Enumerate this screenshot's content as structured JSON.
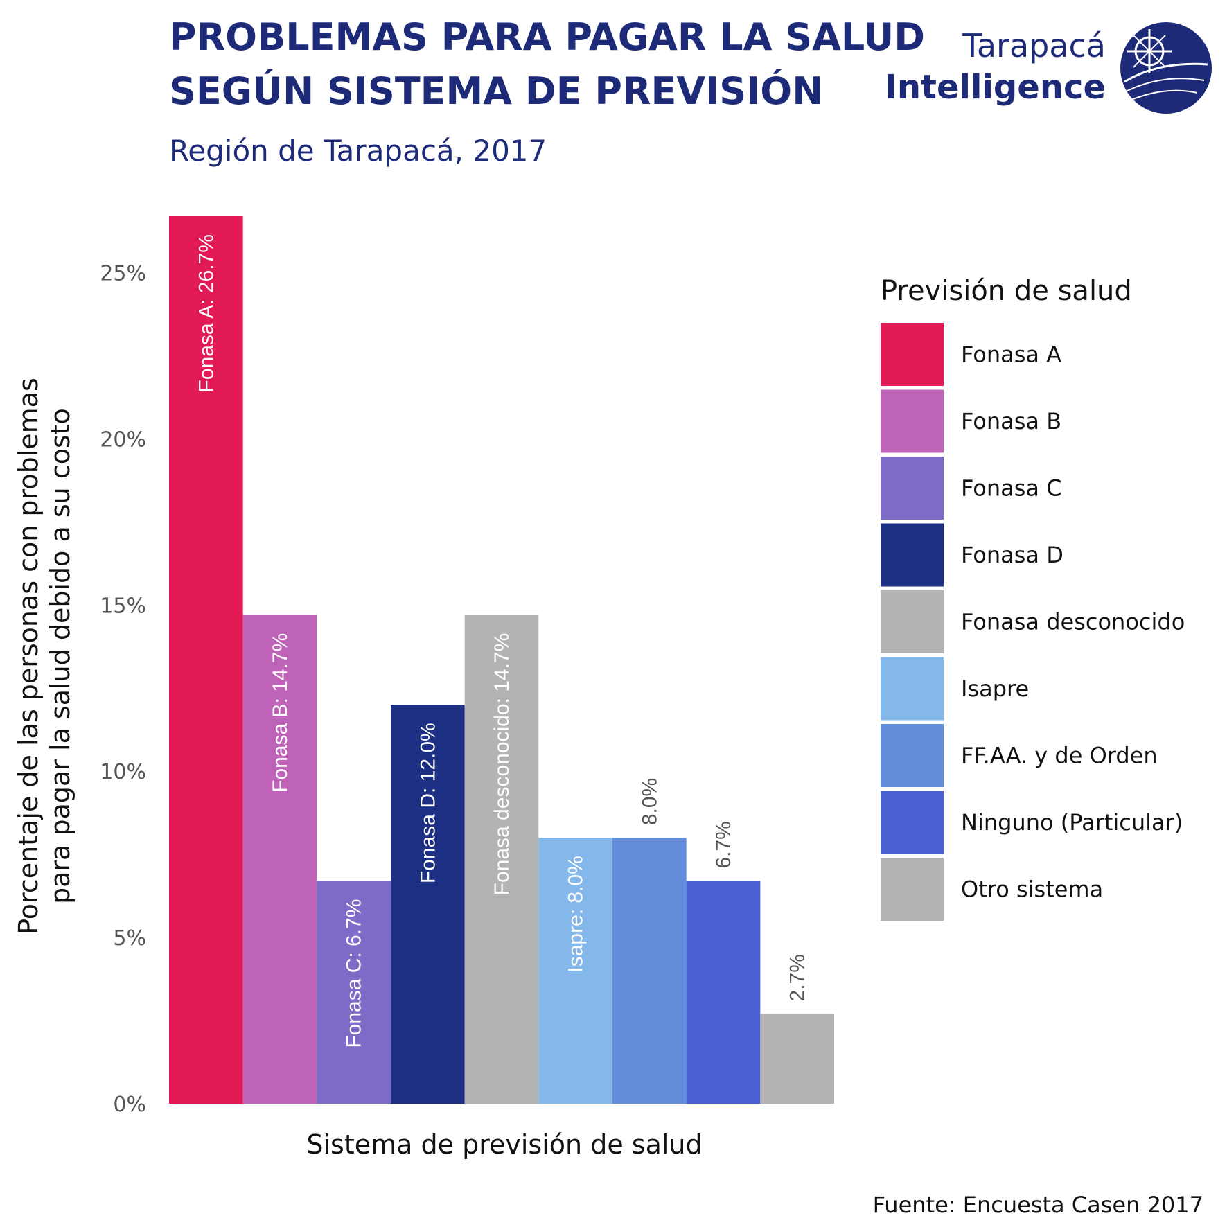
{
  "header": {
    "title_line1": "PROBLEMAS PARA PAGAR LA SALUD",
    "title_line2": "SEGÚN SISTEMA DE PREVISIÓN",
    "subtitle": "Región de Tarapacá, 2017"
  },
  "logo": {
    "line1": "Tarapacá",
    "line2": "Intelligence",
    "icon": "compass-globe-icon",
    "color": "#1c2a78"
  },
  "legend": {
    "title": "Previsión de salud"
  },
  "caption": "Fuente: Encuesta Casen 2017",
  "chart_data": {
    "type": "bar",
    "xlabel": "Sistema de previsión de salud",
    "ylabel_line1": "Porcentaje de las personas con problemas",
    "ylabel_line2": "para pagar la salud debido a su costo",
    "ylim": [
      0,
      26.7
    ],
    "yticks": [
      {
        "value": 0,
        "label": "0%"
      },
      {
        "value": 5,
        "label": "5%"
      },
      {
        "value": 10,
        "label": "10%"
      },
      {
        "value": 15,
        "label": "15%"
      },
      {
        "value": 20,
        "label": "20%"
      },
      {
        "value": 25,
        "label": "25%"
      }
    ],
    "grid": false,
    "legend_position": "right",
    "categories": [
      {
        "name": "Fonasa A",
        "value": 26.7,
        "label": "Fonasa A: 26.7%",
        "label_inside": true,
        "color": "#e11955"
      },
      {
        "name": "Fonasa B",
        "value": 14.7,
        "label": "Fonasa B: 14.7%",
        "label_inside": true,
        "color": "#bf63b9"
      },
      {
        "name": "Fonasa C",
        "value": 6.7,
        "label": "Fonasa C: 6.7%",
        "label_inside": true,
        "color": "#7e6bc8"
      },
      {
        "name": "Fonasa D",
        "value": 12.0,
        "label": "Fonasa D: 12.0%",
        "label_inside": true,
        "color": "#1c2f83"
      },
      {
        "name": "Fonasa desconocido",
        "value": 14.7,
        "label": "Fonasa desconocido: 14.7%",
        "label_inside": true,
        "color": "#b3b3b3"
      },
      {
        "name": "Isapre",
        "value": 8.0,
        "label": "Isapre: 8.0%",
        "label_inside": true,
        "color": "#84b8ea"
      },
      {
        "name": "FF.AA. y de Orden",
        "value": 8.0,
        "label": "8.0%",
        "label_inside": false,
        "color": "#638ddb"
      },
      {
        "name": "Ninguno (Particular)",
        "value": 6.7,
        "label": "6.7%",
        "label_inside": false,
        "color": "#4961d2"
      },
      {
        "name": "Otro sistema",
        "value": 2.7,
        "label": "2.7%",
        "label_inside": false,
        "color": "#b3b3b3"
      }
    ]
  }
}
